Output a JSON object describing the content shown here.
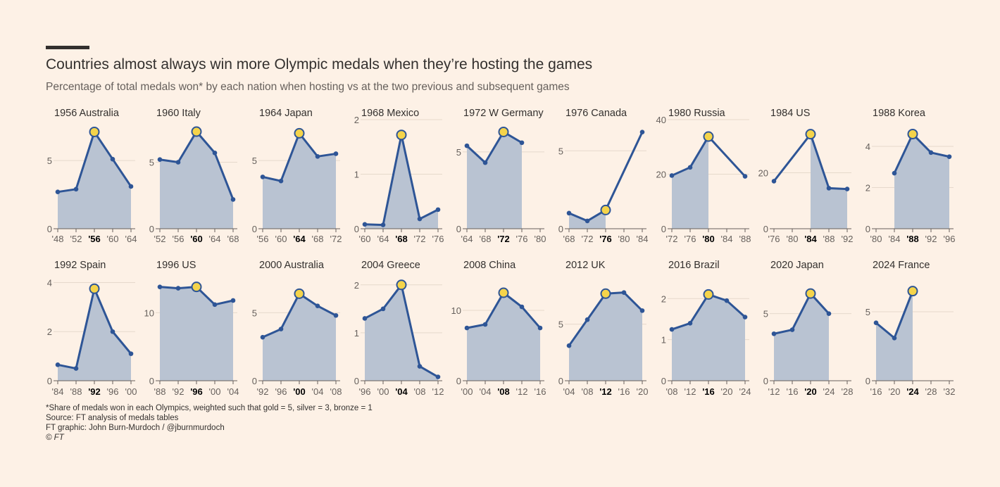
{
  "header": {
    "title": "Countries almost always win more Olympic medals when they’re hosting the games",
    "subtitle": "Percentage of total medals won* by each nation when hosting vs at the two previous and subsequent games"
  },
  "footer": {
    "note": "*Share of medals won in each Olympics, weighted such that gold = 5, silver = 3, bronze = 1",
    "source": "Source: FT analysis of medals tables",
    "credit": "FT graphic: John Burn-Murdoch / @jburnmurdoch",
    "copyright": "© FT"
  },
  "colors": {
    "background": "#fdf1e6",
    "line": "#2e5596",
    "area": "#b9c3d2",
    "highlight": "#f5d44a",
    "grid": "#e6d9cc",
    "axis": "#33302e"
  },
  "chart_data": [
    {
      "type": "line",
      "title": "1956 Australia",
      "categories": [
        "'48",
        "'52",
        "'56",
        "'60",
        "'64"
      ],
      "values": [
        2.7,
        2.9,
        7.1,
        5.1,
        3.1
      ],
      "host_index": 2,
      "ylim": [
        0,
        8
      ],
      "yticks": [
        0,
        5
      ],
      "ytick_labels": [
        "0",
        "5"
      ]
    },
    {
      "type": "line",
      "title": "1960 Italy",
      "categories": [
        "'52",
        "'56",
        "'60",
        "'64",
        "'68"
      ],
      "values": [
        5.2,
        5.0,
        7.3,
        5.7,
        2.2
      ],
      "host_index": 2,
      "ylim": [
        0,
        8.2
      ],
      "yticks": [
        0,
        5
      ],
      "ytick_labels": [
        "0",
        "5"
      ]
    },
    {
      "type": "line",
      "title": "1964 Japan",
      "categories": [
        "'56",
        "'60",
        "'64",
        "'68",
        "'72"
      ],
      "values": [
        3.8,
        3.5,
        7.0,
        5.3,
        5.5
      ],
      "host_index": 2,
      "ylim": [
        0,
        8
      ],
      "yticks": [
        0,
        5
      ],
      "ytick_labels": [
        "0",
        "5"
      ]
    },
    {
      "type": "line",
      "title": "1968 Mexico",
      "categories": [
        "'60",
        "'64",
        "'68",
        "'72",
        "'76"
      ],
      "values": [
        0.08,
        0.07,
        1.72,
        0.18,
        0.35
      ],
      "host_index": 2,
      "ylim": [
        0,
        2
      ],
      "yticks": [
        0,
        1,
        2
      ],
      "ytick_labels": [
        "0",
        "1",
        "2"
      ]
    },
    {
      "type": "line",
      "title": "1972 W Germany",
      "categories": [
        "'64",
        "'68",
        "'72",
        "'76",
        "'80"
      ],
      "values": [
        5.4,
        4.3,
        6.3,
        5.6,
        null
      ],
      "host_index": 2,
      "ylim": [
        0,
        7.1
      ],
      "yticks": [
        0,
        5
      ],
      "ytick_labels": [
        "0",
        "5"
      ]
    },
    {
      "type": "line",
      "title": "1976 Canada",
      "categories": [
        "'68",
        "'72",
        "'76",
        "'80",
        "'84"
      ],
      "values": [
        1.0,
        0.5,
        1.2,
        null,
        6.2
      ],
      "host_index": 2,
      "ylim": [
        0,
        7
      ],
      "yticks": [
        0,
        5
      ],
      "ytick_labels": [
        "0",
        "5"
      ]
    },
    {
      "type": "line",
      "title": "1980 Russia",
      "categories": [
        "'72",
        "'76",
        "'80",
        "'84",
        "'88"
      ],
      "values": [
        19.5,
        22.5,
        33.8,
        null,
        19.2
      ],
      "host_index": 2,
      "ylim": [
        0,
        40
      ],
      "yticks": [
        0,
        20,
        40
      ],
      "ytick_labels": [
        "0",
        "20",
        "40"
      ]
    },
    {
      "type": "line",
      "title": "1984 US",
      "categories": [
        "'76",
        "'80",
        "'84",
        "'88",
        "'92"
      ],
      "values": [
        17.0,
        null,
        33.8,
        14.5,
        14.2
      ],
      "host_index": 2,
      "ylim": [
        0,
        39
      ],
      "yticks": [
        0,
        20
      ],
      "ytick_labels": [
        "0",
        "20"
      ]
    },
    {
      "type": "line",
      "title": "1988 Korea",
      "categories": [
        "'80",
        "'84",
        "'88",
        "'92",
        "'96"
      ],
      "values": [
        null,
        2.7,
        4.6,
        3.7,
        3.5
      ],
      "host_index": 2,
      "ylim": [
        0,
        5.3
      ],
      "yticks": [
        0,
        2,
        4
      ],
      "ytick_labels": [
        "0",
        "2",
        "4"
      ]
    },
    {
      "type": "line",
      "title": "1992 Spain",
      "categories": [
        "'84",
        "'88",
        "'92",
        "'96",
        "'00"
      ],
      "values": [
        0.65,
        0.5,
        3.75,
        2.0,
        1.1
      ],
      "host_index": 2,
      "ylim": [
        0,
        4.1
      ],
      "yticks": [
        0,
        2,
        4
      ],
      "ytick_labels": [
        "0",
        "2",
        "4"
      ]
    },
    {
      "type": "line",
      "title": "1996 US",
      "categories": [
        "'88",
        "'92",
        "'96",
        "'00",
        "'04"
      ],
      "values": [
        13.8,
        13.6,
        13.8,
        11.2,
        11.8
      ],
      "host_index": 2,
      "ylim": [
        0,
        14.8
      ],
      "yticks": [
        0,
        10
      ],
      "ytick_labels": [
        "0",
        "10"
      ]
    },
    {
      "type": "line",
      "title": "2000 Australia",
      "categories": [
        "'92",
        "'96",
        "'00",
        "'04",
        "'08"
      ],
      "values": [
        3.2,
        3.8,
        6.4,
        5.5,
        4.8
      ],
      "host_index": 2,
      "ylim": [
        0,
        7.4
      ],
      "yticks": [
        0,
        5
      ],
      "ytick_labels": [
        "0",
        "5"
      ]
    },
    {
      "type": "line",
      "title": "2004 Greece",
      "categories": [
        "'96",
        "'00",
        "'04",
        "'08",
        "'12"
      ],
      "values": [
        1.3,
        1.5,
        2.0,
        0.3,
        0.08
      ],
      "host_index": 2,
      "ylim": [
        0,
        2.1
      ],
      "yticks": [
        0,
        1,
        2
      ],
      "ytick_labels": [
        "0",
        "1",
        "2"
      ]
    },
    {
      "type": "line",
      "title": "2008 China",
      "categories": [
        "'00",
        "'04",
        "'08",
        "'12",
        "'16"
      ],
      "values": [
        7.5,
        8.0,
        12.5,
        10.5,
        7.5
      ],
      "host_index": 2,
      "ylim": [
        0,
        14.3
      ],
      "yticks": [
        0,
        10
      ],
      "ytick_labels": [
        "0",
        "10"
      ]
    },
    {
      "type": "line",
      "title": "2012 UK",
      "categories": [
        "'04",
        "'08",
        "'12",
        "'16",
        "'20"
      ],
      "values": [
        3.1,
        5.4,
        7.7,
        7.8,
        6.2
      ],
      "host_index": 2,
      "ylim": [
        0,
        8.9
      ],
      "yticks": [
        0,
        5
      ],
      "ytick_labels": [
        "0",
        "5"
      ]
    },
    {
      "type": "line",
      "title": "2016 Brazil",
      "categories": [
        "'08",
        "'12",
        "'16",
        "'20",
        "'24"
      ],
      "values": [
        1.25,
        1.4,
        2.1,
        1.95,
        1.55
      ],
      "host_index": 2,
      "ylim": [
        0,
        2.45
      ],
      "yticks": [
        0,
        1,
        2
      ],
      "ytick_labels": [
        "0",
        "1",
        "2"
      ]
    },
    {
      "type": "line",
      "title": "2020 Japan",
      "categories": [
        "'12",
        "'16",
        "'20",
        "'24",
        "'28"
      ],
      "values": [
        3.5,
        3.8,
        6.5,
        5.0,
        null
      ],
      "host_index": 2,
      "ylim": [
        0,
        7.5
      ],
      "yticks": [
        0,
        5
      ],
      "ytick_labels": [
        "0",
        "5"
      ]
    },
    {
      "type": "line",
      "title": "2024 France",
      "categories": [
        "'16",
        "'20",
        "'24",
        "'28",
        "'32"
      ],
      "values": [
        4.2,
        3.1,
        6.5,
        null,
        null
      ],
      "host_index": 2,
      "ylim": [
        0,
        7.3
      ],
      "yticks": [
        0,
        5
      ],
      "ytick_labels": [
        "0",
        "5"
      ]
    }
  ]
}
